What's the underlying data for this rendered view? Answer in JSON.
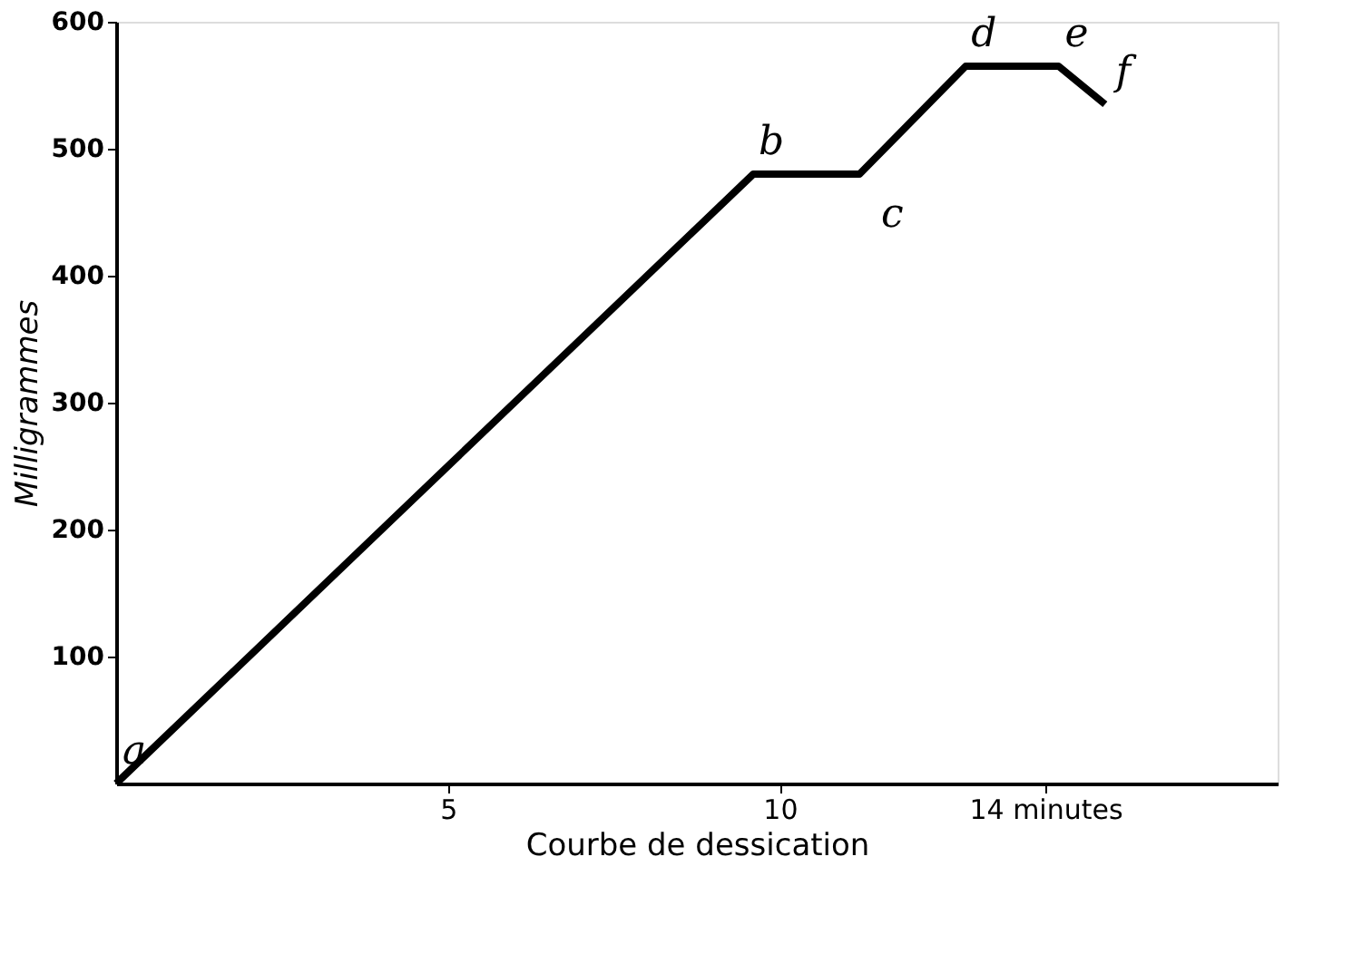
{
  "chart_data": {
    "type": "line",
    "xlabel": "Courbe de dessication",
    "ylabel": "Milligrammes",
    "x": [
      0,
      9.6,
      11.2,
      12.8,
      14.2,
      14.9
    ],
    "series": [
      {
        "color": "#000000",
        "values": [
          0,
          480,
          480,
          565,
          565,
          535
        ]
      }
    ],
    "xlim": [
      0,
      17.5
    ],
    "ylim": [
      0,
      600
    ],
    "xticks": [
      5,
      10,
      {
        "value": 14,
        "label": "14 minutes"
      }
    ],
    "yticks": [
      100,
      200,
      300,
      400,
      500,
      600
    ],
    "annotations": [
      {
        "text": "a",
        "x": 0,
        "y": 0
      },
      {
        "text": "b",
        "x": 9.6,
        "y": 480
      },
      {
        "text": "c",
        "x": 11.2,
        "y": 480
      },
      {
        "text": "d",
        "x": 12.8,
        "y": 565
      },
      {
        "text": "e",
        "x": 14.2,
        "y": 565
      },
      {
        "text": "f",
        "x": 14.9,
        "y": 535
      }
    ],
    "grid": false,
    "marker": "none",
    "line_style": "solid"
  }
}
